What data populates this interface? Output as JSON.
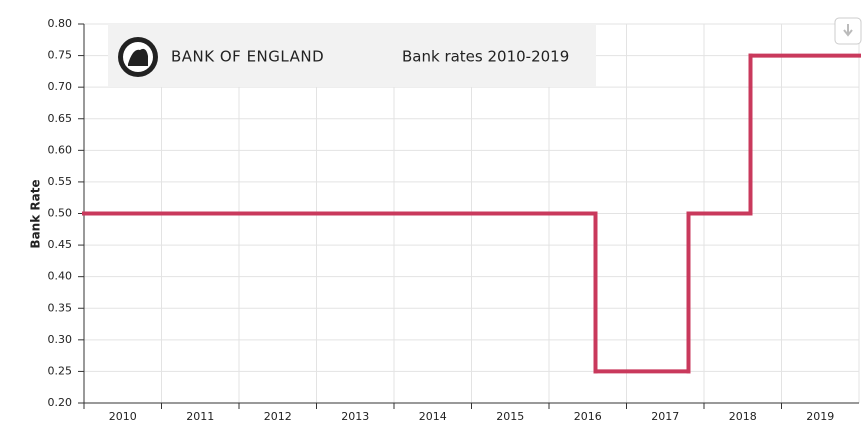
{
  "chart_data": {
    "type": "step",
    "brand": "BANK OF ENGLAND",
    "title": "Bank rates 2010-2019",
    "y_label": "Bank Rate",
    "x": [
      2010,
      2016.6,
      2017.8,
      2018.6
    ],
    "values": [
      0.5,
      0.25,
      0.5,
      0.75
    ],
    "color": "#c9395c",
    "xlim": [
      2010,
      2020
    ],
    "xticks": [
      2010,
      2011,
      2012,
      2013,
      2014,
      2015,
      2016,
      2017,
      2018,
      2019
    ],
    "ylim": [
      0.2,
      0.8
    ],
    "yticks": [
      {
        "value": 0.2,
        "label": "0.20"
      },
      {
        "value": 0.25,
        "label": "0.25"
      },
      {
        "value": 0.3,
        "label": "0.30"
      },
      {
        "value": 0.35,
        "label": "0.35"
      },
      {
        "value": 0.4,
        "label": "0.40"
      },
      {
        "value": 0.45,
        "label": "0.45"
      },
      {
        "value": 0.5,
        "label": "0.50"
      },
      {
        "value": 0.55,
        "label": "0.55"
      },
      {
        "value": 0.6,
        "label": "0.60"
      },
      {
        "value": 0.65,
        "label": "0.65"
      },
      {
        "value": 0.7,
        "label": "0.70"
      },
      {
        "value": 0.75,
        "label": "0.75"
      },
      {
        "value": 0.8,
        "label": "0.80"
      }
    ],
    "grid": true
  }
}
